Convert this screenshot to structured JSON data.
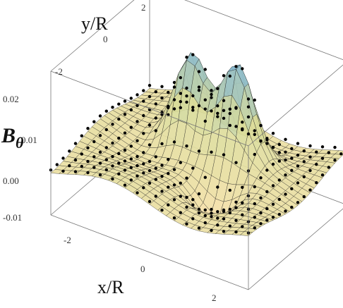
{
  "chart_data": {
    "type": "surface3d",
    "description_free": true,
    "xlabel": "x/R",
    "ylabel": "y/R",
    "zlabel": "B",
    "zlabel_sub": "θ",
    "xlim": [
      -3,
      3
    ],
    "ylim": [
      -3,
      3
    ],
    "zlim": [
      -0.01,
      0.02
    ],
    "x_ticks": [
      "-2",
      "0",
      "2"
    ],
    "y_ticks": [
      "-2",
      "0",
      "2"
    ],
    "z_ticks": [
      "0.02",
      "0.01",
      "0.00",
      "-0.01"
    ],
    "grid": false,
    "peaks": [
      {
        "x": -0.7,
        "y": 0.9,
        "z": 0.019
      },
      {
        "x": 0.7,
        "y": 0.9,
        "z": 0.019
      }
    ],
    "trough": {
      "x": 0.9,
      "y": -0.9,
      "z": -0.008
    },
    "colors": {
      "surface_low": "#f4e0a8",
      "surface_mid": "#d9dc9a",
      "surface_high": "#7fb6d6",
      "mesh": "#1a1a1a",
      "points": "#000000",
      "box": "#777777"
    }
  }
}
